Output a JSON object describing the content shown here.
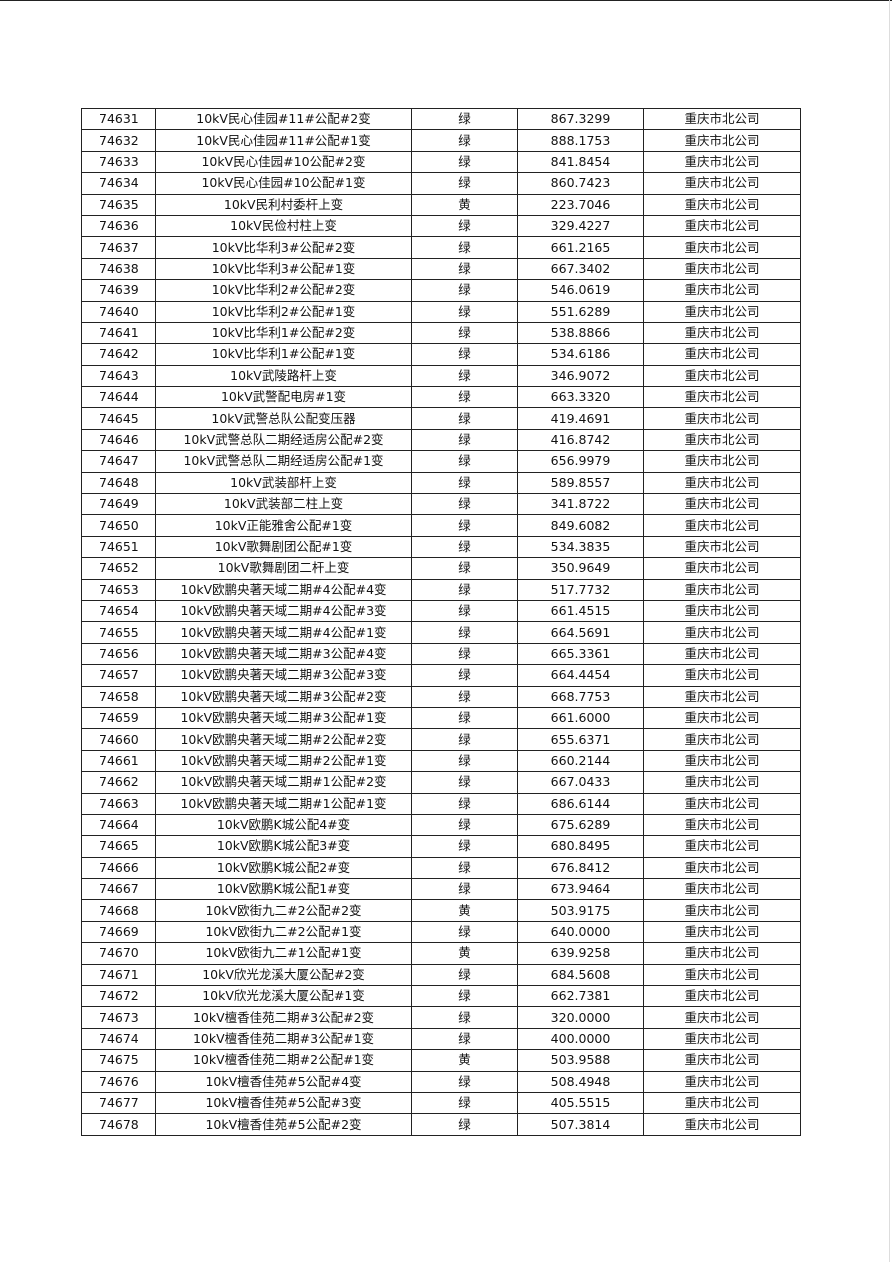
{
  "table": {
    "rows": [
      [
        "74631",
        "10kV民心佳园#11#公配#2变",
        "绿",
        "867.3299",
        "重庆市北公司"
      ],
      [
        "74632",
        "10kV民心佳园#11#公配#1变",
        "绿",
        "888.1753",
        "重庆市北公司"
      ],
      [
        "74633",
        "10kV民心佳园#10公配#2变",
        "绿",
        "841.8454",
        "重庆市北公司"
      ],
      [
        "74634",
        "10kV民心佳园#10公配#1变",
        "绿",
        "860.7423",
        "重庆市北公司"
      ],
      [
        "74635",
        "10kV民利村委杆上变",
        "黄",
        "223.7046",
        "重庆市北公司"
      ],
      [
        "74636",
        "10kV民俭村柱上变",
        "绿",
        "329.4227",
        "重庆市北公司"
      ],
      [
        "74637",
        "10kV比华利3#公配#2变",
        "绿",
        "661.2165",
        "重庆市北公司"
      ],
      [
        "74638",
        "10kV比华利3#公配#1变",
        "绿",
        "667.3402",
        "重庆市北公司"
      ],
      [
        "74639",
        "10kV比华利2#公配#2变",
        "绿",
        "546.0619",
        "重庆市北公司"
      ],
      [
        "74640",
        "10kV比华利2#公配#1变",
        "绿",
        "551.6289",
        "重庆市北公司"
      ],
      [
        "74641",
        "10kV比华利1#公配#2变",
        "绿",
        "538.8866",
        "重庆市北公司"
      ],
      [
        "74642",
        "10kV比华利1#公配#1变",
        "绿",
        "534.6186",
        "重庆市北公司"
      ],
      [
        "74643",
        "10kV武陵路杆上变",
        "绿",
        "346.9072",
        "重庆市北公司"
      ],
      [
        "74644",
        "10kV武警配电房#1变",
        "绿",
        "663.3320",
        "重庆市北公司"
      ],
      [
        "74645",
        "10kV武警总队公配变压器",
        "绿",
        "419.4691",
        "重庆市北公司"
      ],
      [
        "74646",
        "10kV武警总队二期经适房公配#2变",
        "绿",
        "416.8742",
        "重庆市北公司"
      ],
      [
        "74647",
        "10kV武警总队二期经适房公配#1变",
        "绿",
        "656.9979",
        "重庆市北公司"
      ],
      [
        "74648",
        "10kV武装部杆上变",
        "绿",
        "589.8557",
        "重庆市北公司"
      ],
      [
        "74649",
        "10kV武装部二柱上变",
        "绿",
        "341.8722",
        "重庆市北公司"
      ],
      [
        "74650",
        "10kV正能雅舍公配#1变",
        "绿",
        "849.6082",
        "重庆市北公司"
      ],
      [
        "74651",
        "10kV歌舞剧团公配#1变",
        "绿",
        "534.3835",
        "重庆市北公司"
      ],
      [
        "74652",
        "10kV歌舞剧团二杆上变",
        "绿",
        "350.9649",
        "重庆市北公司"
      ],
      [
        "74653",
        "10kV欧鹏央著天域二期#4公配#4变",
        "绿",
        "517.7732",
        "重庆市北公司"
      ],
      [
        "74654",
        "10kV欧鹏央著天域二期#4公配#3变",
        "绿",
        "661.4515",
        "重庆市北公司"
      ],
      [
        "74655",
        "10kV欧鹏央著天域二期#4公配#1变",
        "绿",
        "664.5691",
        "重庆市北公司"
      ],
      [
        "74656",
        "10kV欧鹏央著天域二期#3公配#4变",
        "绿",
        "665.3361",
        "重庆市北公司"
      ],
      [
        "74657",
        "10kV欧鹏央著天域二期#3公配#3变",
        "绿",
        "664.4454",
        "重庆市北公司"
      ],
      [
        "74658",
        "10kV欧鹏央著天域二期#3公配#2变",
        "绿",
        "668.7753",
        "重庆市北公司"
      ],
      [
        "74659",
        "10kV欧鹏央著天域二期#3公配#1变",
        "绿",
        "661.6000",
        "重庆市北公司"
      ],
      [
        "74660",
        "10kV欧鹏央著天域二期#2公配#2变",
        "绿",
        "655.6371",
        "重庆市北公司"
      ],
      [
        "74661",
        "10kV欧鹏央著天域二期#2公配#1变",
        "绿",
        "660.2144",
        "重庆市北公司"
      ],
      [
        "74662",
        "10kV欧鹏央著天域二期#1公配#2变",
        "绿",
        "667.0433",
        "重庆市北公司"
      ],
      [
        "74663",
        "10kV欧鹏央著天域二期#1公配#1变",
        "绿",
        "686.6144",
        "重庆市北公司"
      ],
      [
        "74664",
        "10kV欧鹏K城公配4#变",
        "绿",
        "675.6289",
        "重庆市北公司"
      ],
      [
        "74665",
        "10kV欧鹏K城公配3#变",
        "绿",
        "680.8495",
        "重庆市北公司"
      ],
      [
        "74666",
        "10kV欧鹏K城公配2#变",
        "绿",
        "676.8412",
        "重庆市北公司"
      ],
      [
        "74667",
        "10kV欧鹏K城公配1#变",
        "绿",
        "673.9464",
        "重庆市北公司"
      ],
      [
        "74668",
        "10kV欧街九二#2公配#2变",
        "黄",
        "503.9175",
        "重庆市北公司"
      ],
      [
        "74669",
        "10kV欧街九二#2公配#1变",
        "绿",
        "640.0000",
        "重庆市北公司"
      ],
      [
        "74670",
        "10kV欧街九二#1公配#1变",
        "黄",
        "639.9258",
        "重庆市北公司"
      ],
      [
        "74671",
        "10kV欣光龙溪大厦公配#2变",
        "绿",
        "684.5608",
        "重庆市北公司"
      ],
      [
        "74672",
        "10kV欣光龙溪大厦公配#1变",
        "绿",
        "662.7381",
        "重庆市北公司"
      ],
      [
        "74673",
        "10kV檀香佳苑二期#3公配#2变",
        "绿",
        "320.0000",
        "重庆市北公司"
      ],
      [
        "74674",
        "10kV檀香佳苑二期#3公配#1变",
        "绿",
        "400.0000",
        "重庆市北公司"
      ],
      [
        "74675",
        "10kV檀香佳苑二期#2公配#1变",
        "黄",
        "503.9588",
        "重庆市北公司"
      ],
      [
        "74676",
        "10kV檀香佳苑#5公配#4变",
        "绿",
        "508.4948",
        "重庆市北公司"
      ],
      [
        "74677",
        "10kV檀香佳苑#5公配#3变",
        "绿",
        "405.5515",
        "重庆市北公司"
      ],
      [
        "74678",
        "10kV檀香佳苑#5公配#2变",
        "绿",
        "507.3814",
        "重庆市北公司"
      ]
    ]
  }
}
